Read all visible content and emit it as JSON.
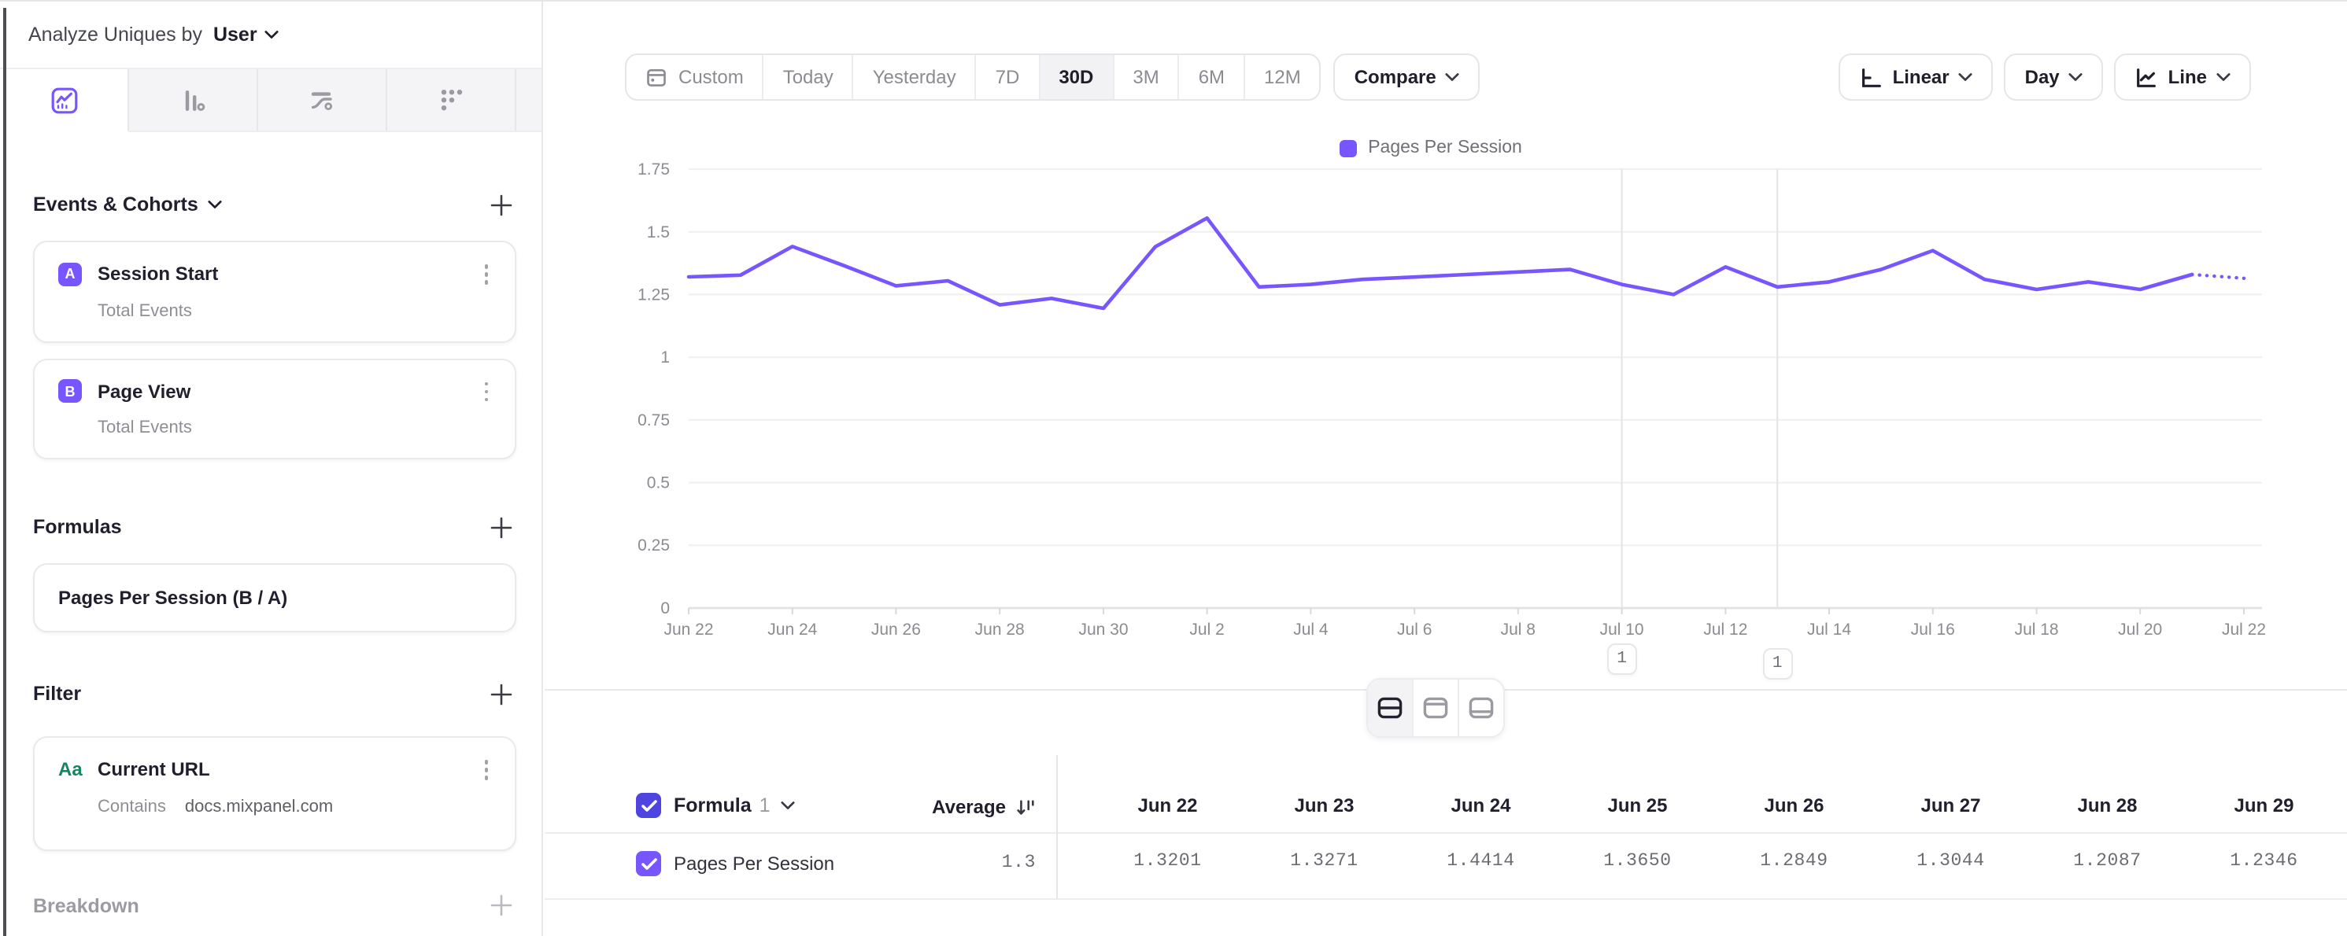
{
  "header": {
    "prefix": "Analyze Uniques by",
    "entity": "User"
  },
  "sidebar": {
    "tabs": [
      {
        "name": "insights",
        "selected": true
      },
      {
        "name": "bar-chart",
        "selected": false
      },
      {
        "name": "flows",
        "selected": false
      },
      {
        "name": "retention",
        "selected": false
      }
    ],
    "events_section": {
      "title": "Events & Cohorts"
    },
    "events": [
      {
        "badge": "A",
        "title": "Session Start",
        "measure": "Total Events"
      },
      {
        "badge": "B",
        "title": "Page View",
        "measure": "Total Events"
      }
    ],
    "formulas_section": {
      "title": "Formulas"
    },
    "formulas": [
      {
        "title": "Pages Per Session (B / A)"
      }
    ],
    "filter_section": {
      "title": "Filter"
    },
    "filters": [
      {
        "type_icon": "Aa",
        "title": "Current URL",
        "operator": "Contains",
        "value": "docs.mixpanel.com"
      }
    ],
    "breakdown_section": {
      "title": "Breakdown"
    }
  },
  "toolbar": {
    "ranges": [
      "Custom",
      "Today",
      "Yesterday",
      "7D",
      "30D",
      "3M",
      "6M",
      "12M"
    ],
    "selected_range": "30D",
    "compare": "Compare",
    "scale": "Linear",
    "granularity": "Day",
    "chart_type": "Line"
  },
  "legend": {
    "label": "Pages Per Session"
  },
  "chart_data": {
    "type": "line",
    "title": "",
    "xlabel": "",
    "ylabel": "",
    "ylim": [
      0,
      1.75
    ],
    "yticks": [
      0,
      0.25,
      0.5,
      0.75,
      1,
      1.25,
      1.5,
      1.75
    ],
    "grid": "horizontal",
    "legend_position": "top-center",
    "xtick_step": 2,
    "x": [
      "Jun 22",
      "Jun 23",
      "Jun 24",
      "Jun 25",
      "Jun 26",
      "Jun 27",
      "Jun 28",
      "Jun 29",
      "Jun 30",
      "Jul 1",
      "Jul 2",
      "Jul 3",
      "Jul 4",
      "Jul 5",
      "Jul 6",
      "Jul 7",
      "Jul 8",
      "Jul 9",
      "Jul 10",
      "Jul 11",
      "Jul 12",
      "Jul 13",
      "Jul 14",
      "Jul 15",
      "Jul 16",
      "Jul 17",
      "Jul 18",
      "Jul 19",
      "Jul 20",
      "Jul 21",
      "Jul 22"
    ],
    "series": [
      {
        "name": "Pages Per Session",
        "color": "#7856FF",
        "values": [
          1.3201,
          1.3271,
          1.4414,
          1.365,
          1.2849,
          1.3044,
          1.2087,
          1.2346,
          1.195,
          1.44,
          1.555,
          1.28,
          1.29,
          1.31,
          1.32,
          1.33,
          1.34,
          1.35,
          1.29,
          1.25,
          1.36,
          1.28,
          1.3,
          1.35,
          1.425,
          1.31,
          1.27,
          1.3,
          1.27,
          1.33,
          1.315
        ]
      }
    ],
    "solid_until_index": 29,
    "dashed_tail_note": "incomplete current period shown dotted"
  },
  "annotations": [
    {
      "index": 18,
      "date": "Jul 10",
      "count": "1"
    },
    {
      "index": 21,
      "date": "Jul 13",
      "count": "1"
    }
  ],
  "table": {
    "formula_label": "Formula",
    "formula_number": "1",
    "average_label": "Average",
    "columns": [
      "Jun 22",
      "Jun 23",
      "Jun 24",
      "Jun 25",
      "Jun 26",
      "Jun 27",
      "Jun 28",
      "Jun 29"
    ],
    "rows": [
      {
        "label": "Pages Per Session",
        "average": "1.3",
        "values": [
          "1.3201",
          "1.3271",
          "1.4414",
          "1.3650",
          "1.2849",
          "1.3044",
          "1.2087",
          "1.2346"
        ]
      }
    ]
  },
  "colors": {
    "accent": "#7856FF",
    "checkbox_header": "#4F44E0",
    "checkbox_row": "#7856FF",
    "green": "#13875D"
  }
}
